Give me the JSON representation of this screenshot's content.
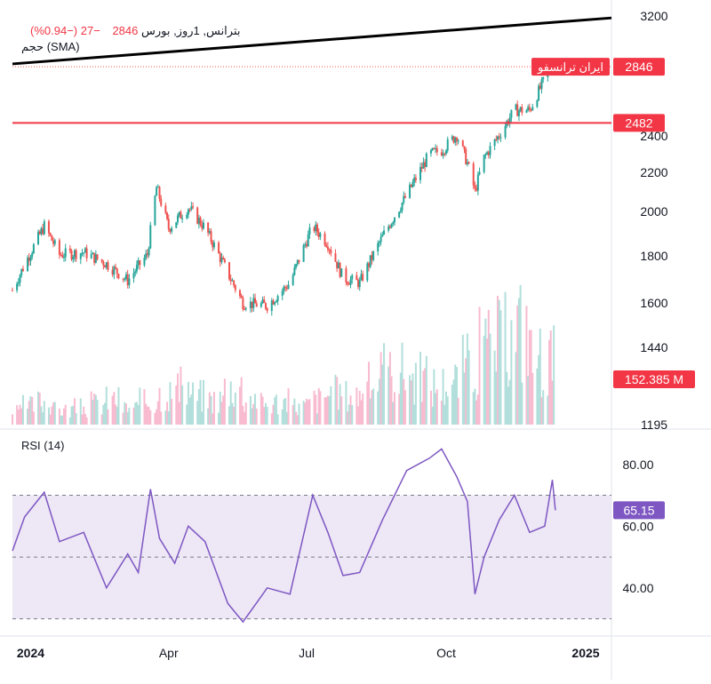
{
  "legend": {
    "symbol": "بترانس, 1روز, بورس",
    "last": "2846",
    "change": "−27 (−0.94%)",
    "volume_label": "حجم (SMA)"
  },
  "rsi": {
    "label": "RSI (14)",
    "current": "65.15",
    "levels": [
      70,
      50,
      30
    ],
    "ticks": [
      "80.00",
      "60.00",
      "40.00"
    ],
    "range": [
      25,
      90
    ]
  },
  "badges": {
    "name": "ایران ترانسفو",
    "price": "2846",
    "hline": "2482",
    "volume": "152.385 M"
  },
  "price_axis": {
    "ticks": [
      "3200",
      "2400",
      "2200",
      "2000",
      "1800",
      "1600",
      "1440",
      "1195"
    ],
    "scale": "log"
  },
  "time_axis": {
    "ticks": [
      "2024",
      "Apr",
      "Jul",
      "Oct",
      "2025"
    ]
  },
  "colors": {
    "up": "#26a69a",
    "down": "#ef5350",
    "hline": "#f23645",
    "trend": "#000000",
    "rsi_line": "#7e57c2",
    "rsi_fill": "#ede7f6",
    "rsi_badge": "#7e57c2",
    "price_badge": "#f23645"
  },
  "chart_data": [
    {
      "type": "candlestick",
      "title": "بترانس, 1روز, بورس",
      "x": [
        "2023-12-20",
        "2024-01-10",
        "2024-01-20",
        "2024-02-05",
        "2024-02-20",
        "2024-03-05",
        "2024-03-18",
        "2024-03-24",
        "2024-04-01",
        "2024-04-14",
        "2024-04-25",
        "2024-05-10",
        "2024-05-20",
        "2024-06-05",
        "2024-06-20",
        "2024-07-05",
        "2024-07-15",
        "2024-07-25",
        "2024-08-05",
        "2024-08-20",
        "2024-09-05",
        "2024-09-20",
        "2024-09-28",
        "2024-10-08",
        "2024-10-15",
        "2024-10-20",
        "2024-10-26",
        "2024-11-05",
        "2024-11-15",
        "2024-11-25",
        "2024-12-05",
        "2024-12-10",
        "2024-12-12"
      ],
      "close": [
        1650,
        1930,
        1800,
        1810,
        1760,
        1690,
        1800,
        2120,
        1920,
        2020,
        1920,
        1720,
        1600,
        1590,
        1680,
        1930,
        1850,
        1700,
        1680,
        1880,
        2080,
        2300,
        2320,
        2410,
        2250,
        2100,
        2280,
        2410,
        2560,
        2560,
        2760,
        2870,
        2846
      ],
      "horizontal_line": 2482,
      "trend_line": {
        "from": {
          "x": "2023-12-20",
          "y": 2866
        },
        "to": {
          "x": "2025-01-18",
          "y": 3206
        }
      },
      "last_price": 2846,
      "yscale": "log",
      "xlabel": "",
      "ylabel": ""
    },
    {
      "type": "bar",
      "title": "حجم (SMA)",
      "x_start": "2023-12-20",
      "x_end": "2024-12-12",
      "values_millions": [
        30,
        45,
        55,
        35,
        40,
        50,
        60,
        40,
        55,
        75,
        85,
        70,
        60,
        90,
        65,
        50,
        55,
        45,
        60,
        75,
        70,
        95,
        120,
        130,
        110,
        95,
        105,
        140,
        180,
        200,
        230,
        160,
        152.385
      ],
      "last_value": "152.385 M"
    },
    {
      "type": "line",
      "title": "RSI (14)",
      "x": [
        "2023-12-20",
        "2023-12-28",
        "2024-01-10",
        "2024-01-20",
        "2024-02-05",
        "2024-02-20",
        "2024-03-05",
        "2024-03-12",
        "2024-03-20",
        "2024-03-26",
        "2024-04-05",
        "2024-04-14",
        "2024-04-25",
        "2024-05-10",
        "2024-05-20",
        "2024-06-05",
        "2024-06-20",
        "2024-07-05",
        "2024-07-15",
        "2024-07-25",
        "2024-08-05",
        "2024-08-20",
        "2024-09-05",
        "2024-09-20",
        "2024-09-28",
        "2024-10-08",
        "2024-10-15",
        "2024-10-20",
        "2024-10-26",
        "2024-11-05",
        "2024-11-15",
        "2024-11-25",
        "2024-12-05",
        "2024-12-10",
        "2024-12-12"
      ],
      "values": [
        52,
        63,
        71,
        55,
        58,
        40,
        51,
        45,
        72,
        56,
        48,
        60,
        55,
        35,
        29,
        40,
        38,
        70,
        58,
        44,
        45,
        62,
        78,
        82,
        85,
        76,
        68,
        38,
        50,
        62,
        70,
        58,
        60,
        75,
        65.15
      ],
      "ylim": [
        25,
        90
      ]
    }
  ]
}
